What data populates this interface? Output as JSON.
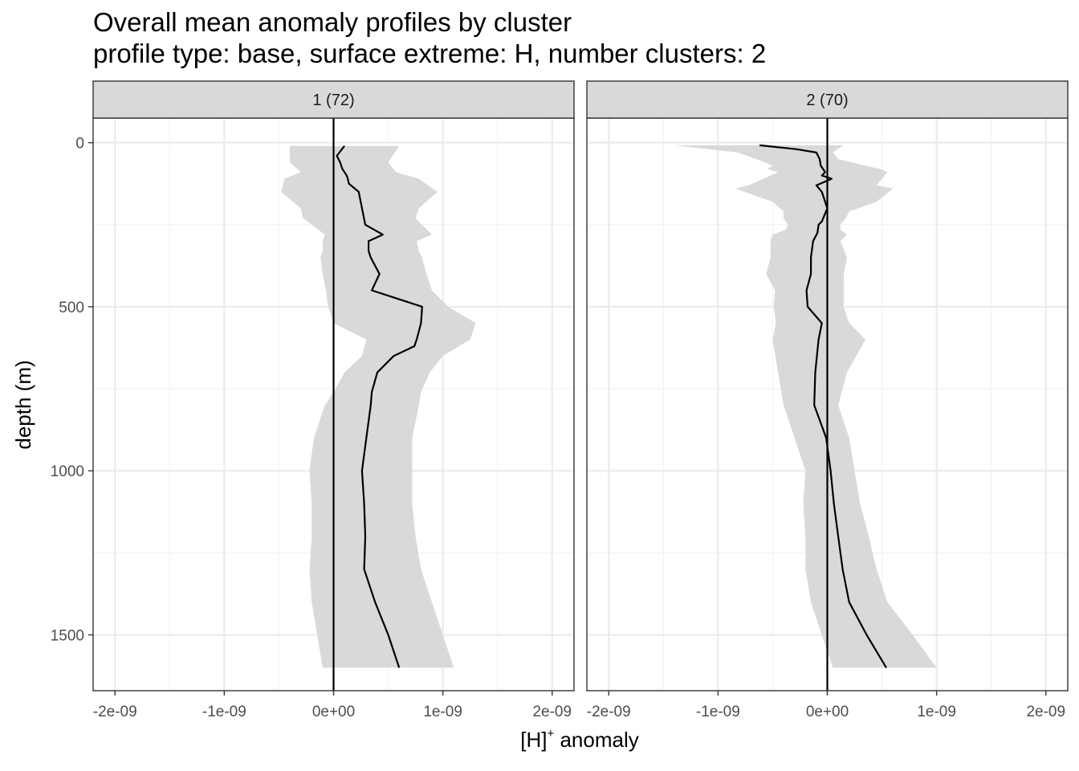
{
  "header": {
    "title": "Overall mean anomaly profiles by cluster",
    "subtitle": "profile type: base, surface extreme: H, number clusters: 2"
  },
  "colors": {
    "ribbon": "#d9d9d9",
    "line": "#000000",
    "grid_major": "#ebebeb",
    "grid_minor": "#f2f2f2",
    "strip_bg": "#d9d9d9",
    "panel_border": "#333333"
  },
  "chart_data": {
    "type": "line",
    "title": "Overall mean anomaly profiles by cluster",
    "subtitle": "profile type: base, surface extreme: H, number clusters: 2",
    "xlabel_main": "[H]",
    "xlabel_sup": "+",
    "xlabel_rest": " anomaly",
    "ylabel": "depth (m)",
    "xlim": [
      -2.2e-09,
      2.2e-09
    ],
    "ylim": [
      1670,
      -75
    ],
    "y_reversed": true,
    "grid": true,
    "x_ticks": [
      -2e-09,
      -1e-09,
      0,
      1e-09,
      2e-09
    ],
    "x_tick_labels": [
      "-2e-09",
      "-1e-09",
      "0e+00",
      "1e-09",
      "2e-09"
    ],
    "y_ticks": [
      0,
      500,
      1000,
      1500
    ],
    "y_tick_labels": [
      "0",
      "500",
      "1000",
      "1500"
    ],
    "vline_x": 0,
    "panels": [
      {
        "label": "1 (72)",
        "series": [
          {
            "kind": "mean",
            "depth": [
              10,
              40,
              60,
              80,
              100,
              110,
              125,
              150,
              200,
              250,
              280,
              300,
              330,
              350,
              400,
              450,
              500,
              550,
              600,
              620,
              650,
              700,
              760,
              800,
              900,
              1000,
              1100,
              1200,
              1300,
              1400,
              1500,
              1600
            ],
            "value": [
              1e-10,
              3e-11,
              6e-11,
              8e-11,
              1.2e-10,
              1.3e-10,
              1.4e-10,
              2.3e-10,
              2.6e-10,
              2.9e-10,
              4.5e-10,
              3.2e-10,
              3.2e-10,
              3.4e-10,
              4.2e-10,
              3.5e-10,
              8.1e-10,
              8e-10,
              7.6e-10,
              7.4e-10,
              5.5e-10,
              4e-10,
              3.5e-10,
              3.4e-10,
              3e-10,
              2.6e-10,
              2.8e-10,
              2.9e-10,
              2.8e-10,
              3.8e-10,
              5e-10,
              6e-10
            ]
          },
          {
            "kind": "band",
            "depth": [
              10,
              60,
              90,
              110,
              150,
              200,
              230,
              280,
              300,
              330,
              350,
              400,
              450,
              500,
              550,
              600,
              650,
              700,
              760,
              800,
              900,
              1000,
              1100,
              1200,
              1300,
              1400,
              1500,
              1600
            ],
            "lower": [
              -4e-10,
              -4e-10,
              -3e-10,
              -4.5e-10,
              -4.8e-10,
              -3e-10,
              -2.8e-10,
              -8e-11,
              -1e-10,
              -1e-10,
              -1.2e-10,
              -1e-10,
              -7e-11,
              -5e-11,
              0.0,
              3e-10,
              2.6e-10,
              1e-10,
              0.0,
              -8e-11,
              -1.8e-10,
              -2.2e-10,
              -2e-10,
              -2e-10,
              -2.2e-10,
              -2e-10,
              -1.5e-10,
              -1e-10
            ],
            "upper": [
              6e-10,
              5e-10,
              5.7e-10,
              7.8e-10,
              9.5e-10,
              7.8e-10,
              7.5e-10,
              9e-10,
              7.6e-10,
              7.8e-10,
              8.1e-10,
              8.5e-10,
              9e-10,
              1.05e-09,
              1.3e-09,
              1.25e-09,
              1e-09,
              8.8e-10,
              8e-10,
              7.8e-10,
              7.2e-10,
              7.2e-10,
              7.2e-10,
              7.5e-10,
              8e-10,
              9e-10,
              1e-09,
              1.1e-09
            ]
          }
        ]
      },
      {
        "label": "2 (70)",
        "series": [
          {
            "kind": "mean",
            "depth": [
              8,
              20,
              30,
              50,
              70,
              80,
              90,
              100,
              110,
              130,
              150,
              200,
              240,
              250,
              275,
              300,
              350,
              400,
              450,
              500,
              550,
              600,
              700,
              800,
              900,
              1000,
              1100,
              1200,
              1300,
              1400,
              1500,
              1600
            ],
            "value": [
              -6.2e-10,
              -2.8e-10,
              -1e-10,
              -7e-11,
              -6e-11,
              -4e-11,
              -2e-11,
              -5e-11,
              4e-11,
              -1e-10,
              -5e-11,
              0.0,
              -5e-11,
              -8e-11,
              -9e-11,
              -1.3e-10,
              -1.5e-10,
              -1.5e-10,
              -1.9e-10,
              -1.8e-10,
              -5e-11,
              -8e-11,
              -1.1e-10,
              -1.2e-10,
              -1e-11,
              3e-11,
              6e-11,
              1e-10,
              1.4e-10,
              2e-10,
              3.6e-10,
              5.4e-10
            ]
          },
          {
            "kind": "band",
            "depth": [
              8,
              30,
              50,
              70,
              80,
              90,
              130,
              140,
              180,
              210,
              230,
              250,
              265,
              280,
              300,
              350,
              400,
              450,
              500,
              550,
              600,
              700,
              800,
              900,
              1000,
              1100,
              1200,
              1300,
              1400,
              1500,
              1600
            ],
            "lower": [
              -1.4e-09,
              -8.2e-10,
              -6.5e-10,
              -5e-10,
              -5.5e-10,
              -4.5e-10,
              -7.2e-10,
              -8.4e-10,
              -5e-10,
              -4e-10,
              -4e-10,
              -3.6e-10,
              -3.8e-10,
              -5e-10,
              -5.2e-10,
              -5.2e-10,
              -5.6e-10,
              -4.8e-10,
              -4.9e-10,
              -4.7e-10,
              -5e-10,
              -4.5e-10,
              -4e-10,
              -3e-10,
              -2e-10,
              -2.2e-10,
              -2e-10,
              -2e-10,
              -1.5e-10,
              -5e-11,
              5e-11
            ],
            "upper": [
              1.5e-10,
              5e-11,
              1e-10,
              3.5e-10,
              4.8e-10,
              5.5e-10,
              4.5e-10,
              6e-10,
              4.5e-10,
              2e-10,
              1.7e-10,
              1.2e-10,
              1.2e-10,
              1.8e-10,
              1.2e-10,
              1.8e-10,
              1.5e-10,
              1.5e-10,
              1.5e-10,
              2e-10,
              3.5e-10,
              1.8e-10,
              1e-10,
              2e-10,
              2.5e-10,
              3e-10,
              3.8e-10,
              4.5e-10,
              5.5e-10,
              7.8e-10,
              1e-09
            ]
          }
        ]
      }
    ]
  }
}
